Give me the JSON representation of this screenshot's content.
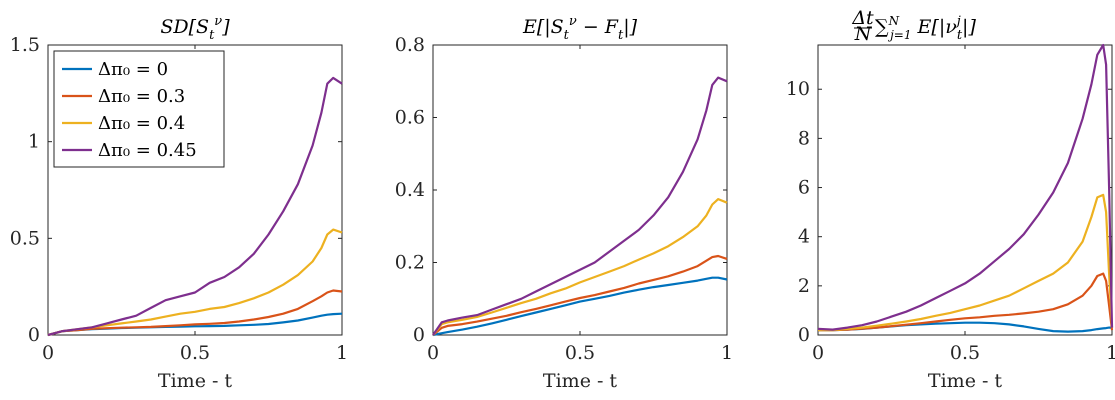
{
  "chart_data": [
    {
      "type": "line",
      "title": "SD[S_t^ν]",
      "xlabel": "Time - t",
      "ylabel": "",
      "xlim": [
        0,
        1
      ],
      "ylim": [
        0,
        1.5
      ],
      "xticks": [
        0,
        0.5,
        1
      ],
      "xtick_labels": [
        "0",
        "0.5",
        "1"
      ],
      "yticks": [
        0,
        0.5,
        1,
        1.5
      ],
      "ytick_labels": [
        "0",
        "0.5",
        "1",
        "1.5"
      ],
      "legend": "top-left",
      "grid": false,
      "x": [
        0,
        0.05,
        0.1,
        0.15,
        0.2,
        0.25,
        0.3,
        0.35,
        0.4,
        0.45,
        0.5,
        0.55,
        0.6,
        0.65,
        0.7,
        0.75,
        0.8,
        0.85,
        0.9,
        0.93,
        0.95,
        0.97,
        1
      ],
      "series": [
        {
          "name": "Δπ₀ = 0",
          "color": "#0072BD",
          "values": [
            0,
            0.02,
            0.025,
            0.03,
            0.033,
            0.036,
            0.038,
            0.04,
            0.042,
            0.043,
            0.045,
            0.046,
            0.047,
            0.05,
            0.053,
            0.057,
            0.065,
            0.075,
            0.09,
            0.1,
            0.105,
            0.108,
            0.11
          ]
        },
        {
          "name": "Δπ₀ = 0.3",
          "color": "#D95319",
          "values": [
            0,
            0.02,
            0.025,
            0.032,
            0.035,
            0.038,
            0.04,
            0.042,
            0.046,
            0.05,
            0.055,
            0.058,
            0.062,
            0.07,
            0.08,
            0.093,
            0.11,
            0.135,
            0.175,
            0.2,
            0.22,
            0.23,
            0.225
          ]
        },
        {
          "name": "Δπ₀ = 0.4",
          "color": "#EDB120",
          "values": [
            0,
            0.02,
            0.03,
            0.04,
            0.05,
            0.06,
            0.07,
            0.08,
            0.095,
            0.11,
            0.12,
            0.135,
            0.145,
            0.165,
            0.19,
            0.22,
            0.26,
            0.31,
            0.38,
            0.45,
            0.52,
            0.545,
            0.53
          ]
        },
        {
          "name": "Δπ₀ = 0.45",
          "color": "#7E2F8E",
          "values": [
            0,
            0.02,
            0.03,
            0.04,
            0.06,
            0.08,
            0.1,
            0.14,
            0.18,
            0.2,
            0.22,
            0.27,
            0.3,
            0.35,
            0.42,
            0.52,
            0.64,
            0.78,
            0.98,
            1.15,
            1.3,
            1.33,
            1.3
          ]
        }
      ]
    },
    {
      "type": "line",
      "title": "E[|S_t^ν − F_t|]",
      "xlabel": "Time - t",
      "ylabel": "",
      "xlim": [
        0,
        1
      ],
      "ylim": [
        0,
        0.8
      ],
      "xticks": [
        0,
        0.5,
        1
      ],
      "xtick_labels": [
        "0",
        "0.5",
        "1"
      ],
      "yticks": [
        0,
        0.2,
        0.4,
        0.6,
        0.8
      ],
      "ytick_labels": [
        "0",
        "0.2",
        "0.4",
        "0.6",
        "0.8"
      ],
      "grid": false,
      "x": [
        0,
        0.03,
        0.05,
        0.1,
        0.15,
        0.2,
        0.25,
        0.3,
        0.35,
        0.4,
        0.45,
        0.5,
        0.55,
        0.6,
        0.65,
        0.7,
        0.75,
        0.8,
        0.85,
        0.9,
        0.93,
        0.95,
        0.97,
        1
      ],
      "series": [
        {
          "name": "Δπ₀ = 0",
          "color": "#0072BD",
          "values": [
            0,
            0.005,
            0.008,
            0.015,
            0.023,
            0.032,
            0.042,
            0.052,
            0.062,
            0.072,
            0.082,
            0.092,
            0.1,
            0.108,
            0.117,
            0.125,
            0.132,
            0.138,
            0.144,
            0.15,
            0.155,
            0.158,
            0.158,
            0.153
          ]
        },
        {
          "name": "Δπ₀ = 0.3",
          "color": "#D95319",
          "values": [
            0,
            0.02,
            0.025,
            0.03,
            0.037,
            0.045,
            0.053,
            0.063,
            0.072,
            0.082,
            0.092,
            0.102,
            0.11,
            0.12,
            0.13,
            0.142,
            0.152,
            0.162,
            0.175,
            0.19,
            0.205,
            0.215,
            0.218,
            0.21
          ]
        },
        {
          "name": "Δπ₀ = 0.4",
          "color": "#EDB120",
          "values": [
            0,
            0.03,
            0.035,
            0.042,
            0.05,
            0.062,
            0.075,
            0.088,
            0.1,
            0.115,
            0.128,
            0.145,
            0.16,
            0.175,
            0.19,
            0.208,
            0.225,
            0.245,
            0.27,
            0.3,
            0.33,
            0.36,
            0.375,
            0.365
          ]
        },
        {
          "name": "Δπ₀ = 0.45",
          "color": "#7E2F8E",
          "values": [
            0,
            0.035,
            0.04,
            0.048,
            0.055,
            0.07,
            0.085,
            0.1,
            0.12,
            0.14,
            0.16,
            0.18,
            0.2,
            0.23,
            0.26,
            0.29,
            0.33,
            0.38,
            0.45,
            0.54,
            0.62,
            0.69,
            0.71,
            0.7
          ]
        }
      ]
    },
    {
      "type": "line",
      "title": "(Δt/N) Σ_{j=1}^{N} E[|ν_t^j|]",
      "xlabel": "Time - t",
      "ylabel": "",
      "xlim": [
        0,
        1
      ],
      "ylim": [
        0,
        11.8
      ],
      "xticks": [
        0,
        0.5,
        1
      ],
      "xtick_labels": [
        "0",
        "0.5",
        "1"
      ],
      "yticks": [
        0,
        2,
        4,
        6,
        8,
        10
      ],
      "ytick_labels": [
        "0",
        "2",
        "4",
        "6",
        "8",
        "10"
      ],
      "grid": false,
      "x": [
        0,
        0.05,
        0.1,
        0.15,
        0.2,
        0.25,
        0.3,
        0.35,
        0.4,
        0.45,
        0.5,
        0.55,
        0.6,
        0.65,
        0.7,
        0.75,
        0.8,
        0.85,
        0.9,
        0.93,
        0.95,
        0.97,
        0.98,
        0.99,
        1
      ],
      "series": [
        {
          "name": "Δπ₀ = 0",
          "color": "#0072BD",
          "values": [
            0.2,
            0.2,
            0.22,
            0.25,
            0.3,
            0.35,
            0.4,
            0.43,
            0.46,
            0.48,
            0.5,
            0.5,
            0.48,
            0.43,
            0.35,
            0.25,
            0.16,
            0.14,
            0.16,
            0.2,
            0.24,
            0.27,
            0.28,
            0.3,
            0.3
          ]
        },
        {
          "name": "Δπ₀ = 0.3",
          "color": "#D95319",
          "values": [
            0.2,
            0.2,
            0.22,
            0.26,
            0.3,
            0.36,
            0.42,
            0.48,
            0.55,
            0.62,
            0.68,
            0.72,
            0.78,
            0.82,
            0.88,
            0.95,
            1.05,
            1.25,
            1.6,
            2.0,
            2.4,
            2.5,
            2.2,
            1.2,
            0.2
          ]
        },
        {
          "name": "Δπ₀ = 0.4",
          "color": "#EDB120",
          "values": [
            0.2,
            0.2,
            0.25,
            0.3,
            0.38,
            0.46,
            0.55,
            0.65,
            0.78,
            0.9,
            1.05,
            1.2,
            1.4,
            1.6,
            1.9,
            2.2,
            2.5,
            2.95,
            3.8,
            4.8,
            5.6,
            5.7,
            5.0,
            2.5,
            0.3
          ]
        },
        {
          "name": "Δπ₀ = 0.45",
          "color": "#7E2F8E",
          "values": [
            0.25,
            0.22,
            0.3,
            0.4,
            0.55,
            0.75,
            0.95,
            1.2,
            1.5,
            1.8,
            2.1,
            2.5,
            3.0,
            3.5,
            4.1,
            4.9,
            5.8,
            7.0,
            8.8,
            10.2,
            11.4,
            11.8,
            11.0,
            6.0,
            0.3
          ]
        }
      ]
    }
  ]
}
